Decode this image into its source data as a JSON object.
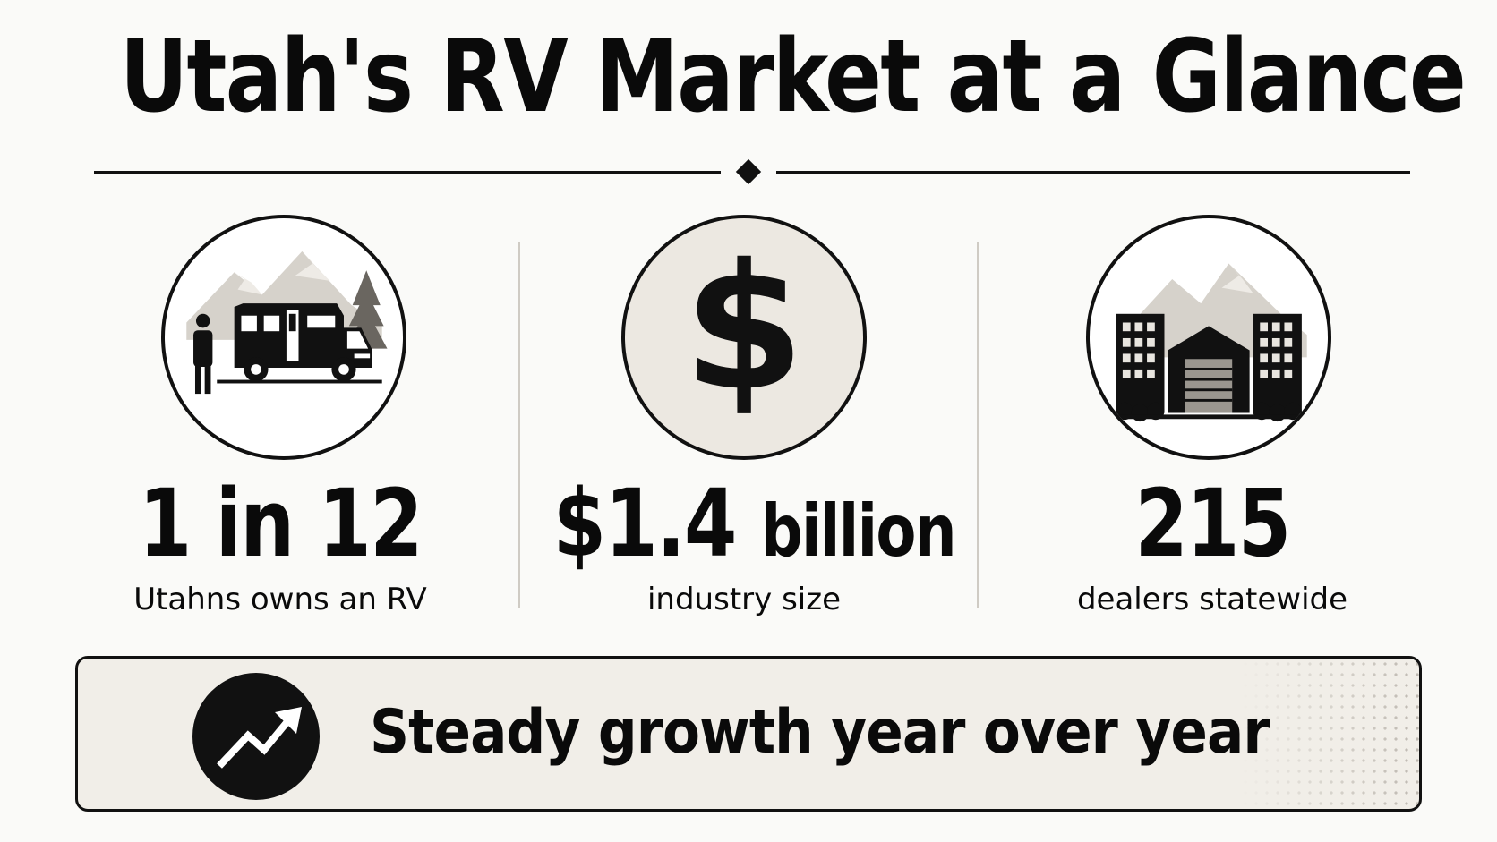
{
  "title": "Utah's RV Market at a Glance",
  "stats": [
    {
      "value": "1 in 12",
      "label": "Utahns owns an RV",
      "icon": "rv-camper-icon"
    },
    {
      "value_main": "$1.4",
      "value_suffix": "billion",
      "label": "industry size",
      "icon": "dollar-sign-icon"
    },
    {
      "value": "215",
      "label": "dealers statewide",
      "icon": "dealership-buildings-icon"
    }
  ],
  "banner": {
    "text": "Steady growth year over year",
    "icon": "growth-arrow-icon"
  },
  "colors": {
    "ink": "#111111",
    "background": "#fafaf8",
    "banner_fill": "#f1eee8",
    "accent_gray": "#cfcbc4",
    "dollar_circle": "#ece8e1"
  }
}
